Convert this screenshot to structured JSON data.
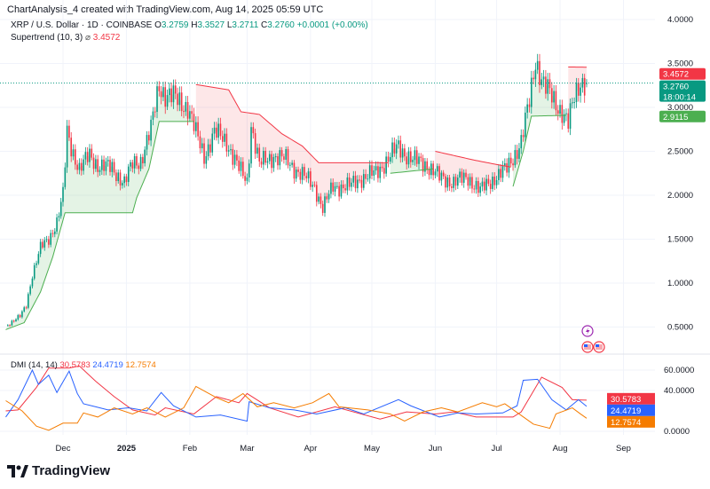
{
  "credit": "ChartAnalysis_4 created with TradingView.com, Aug 14, 2025 05:59 UTC",
  "legend": {
    "symbol": "XRP / U.S. Dollar · 1D · COINBASE",
    "o_label": "O",
    "o": "3.2759",
    "h_label": "H",
    "h": "3.3527",
    "l_label": "L",
    "l": "3.2711",
    "c_label": "C",
    "c": "3.2760",
    "change": "+0.0001 (+0.00%)",
    "indicator": "Supertrend (10, 3)",
    "indicator_value": "3.4572"
  },
  "dmi_legend": {
    "name": "DMI (14, 14)",
    "adx": "30.5783",
    "di_plus": "24.4719",
    "di_minus": "12.7574"
  },
  "colors": {
    "up": "#089981",
    "down": "#f23645",
    "st_up": "#4caf50",
    "st_down": "#f23645",
    "adx": "#f23645",
    "di_plus": "#2962ff",
    "di_minus": "#f57c00"
  },
  "price_labels": {
    "supertrend": "3.4572",
    "last": "3.2760",
    "countdown": "18:00:14",
    "support": "2.9115"
  },
  "dmi_labels": {
    "adx": "30.5783",
    "di_plus": "24.4719",
    "di_minus": "12.7574"
  },
  "icons": [
    "lightning-icon",
    "us-flag-icon",
    "us-flag-icon"
  ],
  "footer": {
    "logo_text": "TradingView"
  },
  "chart_data": [
    {
      "type": "candlestick",
      "title": "XRP / U.S. Dollar · 1D · COINBASE",
      "y_ticks": [
        "4.0000",
        "3.5000",
        "3.0000",
        "2.5000",
        "2.0000",
        "1.5000",
        "1.0000",
        "0.5000"
      ],
      "ylim": [
        0.3,
        4.0
      ],
      "x_ticks": [
        {
          "date": "2024-12-01",
          "label": "Dec"
        },
        {
          "date": "2025-01-01",
          "label": "2025"
        },
        {
          "date": "2025-02-01",
          "label": "Feb"
        },
        {
          "date": "2025-03-01",
          "label": "Mar"
        },
        {
          "date": "2025-04-01",
          "label": "Apr"
        },
        {
          "date": "2025-05-01",
          "label": "May"
        },
        {
          "date": "2025-06-01",
          "label": "Jun"
        },
        {
          "date": "2025-07-01",
          "label": "Jul"
        },
        {
          "date": "2025-08-01",
          "label": "Aug"
        },
        {
          "date": "2025-09-01",
          "label": "Sep"
        }
      ],
      "close": [
        [
          "2024-11-04",
          0.53
        ],
        [
          "2024-11-10",
          0.62
        ],
        [
          "2024-11-13",
          0.75
        ],
        [
          "2024-11-16",
          1.1
        ],
        [
          "2024-11-20",
          1.4
        ],
        [
          "2024-11-24",
          1.5
        ],
        [
          "2024-11-28",
          1.7
        ],
        [
          "2024-12-01",
          2.0
        ],
        [
          "2024-12-03",
          2.71
        ],
        [
          "2024-12-05",
          2.55
        ],
        [
          "2024-12-09",
          2.3
        ],
        [
          "2024-12-14",
          2.45
        ],
        [
          "2024-12-18",
          2.35
        ],
        [
          "2024-12-25",
          2.3
        ],
        [
          "2024-12-31",
          2.15
        ],
        [
          "2025-01-04",
          2.35
        ],
        [
          "2025-01-08",
          2.4
        ],
        [
          "2025-01-13",
          2.75
        ],
        [
          "2025-01-17",
          3.26
        ],
        [
          "2025-01-20",
          3.15
        ],
        [
          "2025-01-24",
          3.11
        ],
        [
          "2025-01-31",
          3.01
        ],
        [
          "2025-02-04",
          2.7
        ],
        [
          "2025-02-08",
          2.45
        ],
        [
          "2025-02-13",
          2.71
        ],
        [
          "2025-02-19",
          2.61
        ],
        [
          "2025-02-25",
          2.3
        ],
        [
          "2025-03-01",
          2.15
        ],
        [
          "2025-03-03",
          2.81
        ],
        [
          "2025-03-07",
          2.35
        ],
        [
          "2025-03-14",
          2.45
        ],
        [
          "2025-03-20",
          2.4
        ],
        [
          "2025-03-27",
          2.25
        ],
        [
          "2025-04-03",
          2.1
        ],
        [
          "2025-04-07",
          1.85
        ],
        [
          "2025-04-12",
          2.1
        ],
        [
          "2025-04-20",
          2.1
        ],
        [
          "2025-04-26",
          2.2
        ],
        [
          "2025-05-03",
          2.25
        ],
        [
          "2025-05-10",
          2.45
        ],
        [
          "2025-05-14",
          2.55
        ],
        [
          "2025-05-21",
          2.4
        ],
        [
          "2025-05-28",
          2.35
        ],
        [
          "2025-06-03",
          2.2
        ],
        [
          "2025-06-10",
          2.15
        ],
        [
          "2025-06-17",
          2.2
        ],
        [
          "2025-06-23",
          2.05
        ],
        [
          "2025-06-30",
          2.2
        ],
        [
          "2025-07-06",
          2.3
        ],
        [
          "2025-07-13",
          2.61
        ],
        [
          "2025-07-17",
          3.06
        ],
        [
          "2025-07-20",
          3.55
        ],
        [
          "2025-07-24",
          3.26
        ],
        [
          "2025-07-28",
          3.11
        ],
        [
          "2025-08-02",
          2.96
        ],
        [
          "2025-08-05",
          2.81
        ],
        [
          "2025-08-08",
          3.11
        ],
        [
          "2025-08-11",
          3.31
        ],
        [
          "2025-08-14",
          3.276
        ]
      ],
      "supertrend": [
        {
          "trend": "up",
          "points": [
            [
              "2024-11-03",
              0.47
            ],
            [
              "2024-11-12",
              0.55
            ],
            [
              "2024-11-20",
              0.9
            ],
            [
              "2024-11-26",
              1.3
            ],
            [
              "2024-12-02",
              1.8
            ],
            [
              "2025-01-04",
              1.8
            ],
            [
              "2025-01-06",
              1.97
            ],
            [
              "2025-01-12",
              2.3
            ],
            [
              "2025-01-17",
              2.84
            ],
            [
              "2025-02-03",
              2.84
            ]
          ]
        },
        {
          "trend": "down",
          "points": [
            [
              "2025-02-04",
              3.26
            ],
            [
              "2025-02-20",
              3.2
            ],
            [
              "2025-02-26",
              2.95
            ],
            [
              "2025-03-07",
              2.92
            ],
            [
              "2025-03-18",
              2.7
            ],
            [
              "2025-03-28",
              2.56
            ],
            [
              "2025-04-05",
              2.37
            ],
            [
              "2025-05-09",
              2.37
            ]
          ]
        },
        {
          "trend": "up",
          "points": [
            [
              "2025-05-10",
              2.25
            ],
            [
              "2025-05-31",
              2.3
            ]
          ]
        },
        {
          "trend": "down",
          "points": [
            [
              "2025-06-01",
              2.5
            ],
            [
              "2025-06-20",
              2.4
            ],
            [
              "2025-07-01",
              2.35
            ],
            [
              "2025-07-08",
              2.32
            ]
          ]
        },
        {
          "trend": "up",
          "points": [
            [
              "2025-07-09",
              2.1
            ],
            [
              "2025-07-14",
              2.5
            ],
            [
              "2025-07-18",
              2.9
            ],
            [
              "2025-08-04",
              2.91
            ]
          ]
        },
        {
          "trend": "down",
          "points": [
            [
              "2025-08-05",
              3.46
            ],
            [
              "2025-08-14",
              3.4572
            ]
          ]
        }
      ]
    },
    {
      "type": "line",
      "title": "DMI (14, 14)",
      "y_ticks": [
        "60.0000",
        "40.0000",
        "0.0000"
      ],
      "ylim": [
        -3,
        63
      ],
      "series": [
        {
          "name": "ADX",
          "color": "#f23645",
          "points": [
            [
              "2024-11-03",
              20
            ],
            [
              "2024-11-09",
              21
            ],
            [
              "2024-11-18",
              43
            ],
            [
              "2024-11-24",
              62
            ],
            [
              "2024-12-04",
              62
            ],
            [
              "2024-12-09",
              64
            ],
            [
              "2024-12-17",
              49
            ],
            [
              "2024-12-26",
              34
            ],
            [
              "2025-01-04",
              21
            ],
            [
              "2025-01-15",
              16
            ],
            [
              "2025-01-20",
              23
            ],
            [
              "2025-02-03",
              17
            ],
            [
              "2025-02-14",
              34
            ],
            [
              "2025-02-25",
              28
            ],
            [
              "2025-03-01",
              37
            ],
            [
              "2025-03-12",
              23
            ],
            [
              "2025-03-26",
              14
            ],
            [
              "2025-04-13",
              24
            ],
            [
              "2025-05-05",
              12
            ],
            [
              "2025-05-18",
              19
            ],
            [
              "2025-06-01",
              17
            ],
            [
              "2025-06-10",
              19
            ],
            [
              "2025-06-21",
              14
            ],
            [
              "2025-07-09",
              14
            ],
            [
              "2025-07-13",
              19
            ],
            [
              "2025-07-23",
              53
            ],
            [
              "2025-08-02",
              43
            ],
            [
              "2025-08-07",
              31
            ],
            [
              "2025-08-14",
              30.5783
            ]
          ]
        },
        {
          "name": "DI+",
          "color": "#2962ff",
          "points": [
            [
              "2024-11-03",
              14
            ],
            [
              "2024-11-09",
              31
            ],
            [
              "2024-11-16",
              60
            ],
            [
              "2024-11-19",
              46
            ],
            [
              "2024-11-24",
              55
            ],
            [
              "2024-11-28",
              38
            ],
            [
              "2024-12-04",
              59
            ],
            [
              "2024-12-08",
              37
            ],
            [
              "2024-12-11",
              27
            ],
            [
              "2024-12-17",
              24
            ],
            [
              "2024-12-23",
              21
            ],
            [
              "2025-01-02",
              23
            ],
            [
              "2025-01-11",
              20
            ],
            [
              "2025-01-18",
              38
            ],
            [
              "2025-01-24",
              25
            ],
            [
              "2025-02-04",
              14
            ],
            [
              "2025-02-16",
              16
            ],
            [
              "2025-03-01",
              10
            ],
            [
              "2025-03-02",
              29
            ],
            [
              "2025-03-12",
              23
            ],
            [
              "2025-03-24",
              21
            ],
            [
              "2025-04-04",
              17
            ],
            [
              "2025-04-18",
              23
            ],
            [
              "2025-04-27",
              17
            ],
            [
              "2025-05-14",
              31
            ],
            [
              "2025-05-20",
              25
            ],
            [
              "2025-06-03",
              14
            ],
            [
              "2025-06-12",
              18
            ],
            [
              "2025-06-21",
              17
            ],
            [
              "2025-07-04",
              18
            ],
            [
              "2025-07-11",
              25
            ],
            [
              "2025-07-14",
              50
            ],
            [
              "2025-07-21",
              51
            ],
            [
              "2025-07-28",
              31
            ],
            [
              "2025-08-04",
              21
            ],
            [
              "2025-08-10",
              31
            ],
            [
              "2025-08-14",
              24.4719
            ]
          ]
        },
        {
          "name": "DI-",
          "color": "#f57c00",
          "points": [
            [
              "2024-11-03",
              30
            ],
            [
              "2024-11-11",
              20
            ],
            [
              "2024-11-18",
              5
            ],
            [
              "2024-11-24",
              1
            ],
            [
              "2024-12-01",
              8
            ],
            [
              "2024-12-08",
              8
            ],
            [
              "2024-12-11",
              18
            ],
            [
              "2024-12-18",
              14
            ],
            [
              "2024-12-26",
              23
            ],
            [
              "2025-01-04",
              17
            ],
            [
              "2025-01-11",
              23
            ],
            [
              "2025-01-20",
              14
            ],
            [
              "2025-01-29",
              23
            ],
            [
              "2025-02-04",
              44
            ],
            [
              "2025-02-14",
              33
            ],
            [
              "2025-02-20",
              28
            ],
            [
              "2025-02-27",
              37
            ],
            [
              "2025-03-06",
              24
            ],
            [
              "2025-03-14",
              28
            ],
            [
              "2025-03-24",
              23
            ],
            [
              "2025-04-02",
              28
            ],
            [
              "2025-04-10",
              37
            ],
            [
              "2025-04-15",
              24
            ],
            [
              "2025-04-29",
              21
            ],
            [
              "2025-05-10",
              17
            ],
            [
              "2025-05-17",
              10
            ],
            [
              "2025-05-26",
              19
            ],
            [
              "2025-06-04",
              23
            ],
            [
              "2025-06-12",
              19
            ],
            [
              "2025-06-24",
              28
            ],
            [
              "2025-07-01",
              24
            ],
            [
              "2025-07-05",
              27
            ],
            [
              "2025-07-12",
              17
            ],
            [
              "2025-07-19",
              7
            ],
            [
              "2025-07-27",
              3
            ],
            [
              "2025-07-30",
              17
            ],
            [
              "2025-08-07",
              23
            ],
            [
              "2025-08-11",
              17
            ],
            [
              "2025-08-14",
              12.7574
            ]
          ]
        }
      ]
    }
  ]
}
